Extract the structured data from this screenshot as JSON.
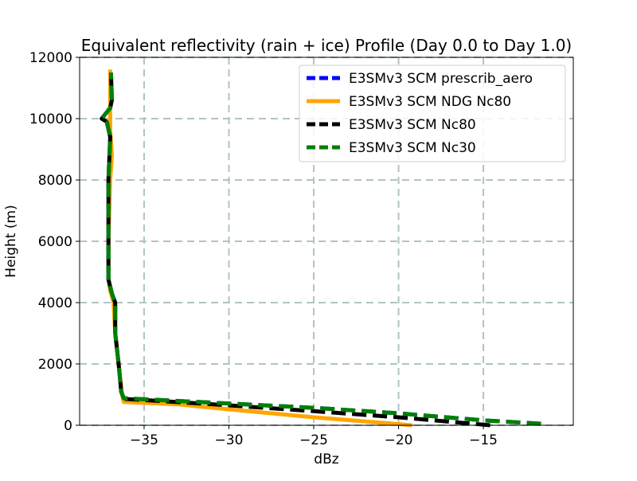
{
  "chart_data": {
    "type": "line",
    "title": "Equivalent reflectivity (rain + ice) Profile (Day 0.0 to Day 1.0)",
    "xlabel": "dBz",
    "ylabel": "Height (m)",
    "xlim": [
      -38.8,
      -9.7
    ],
    "ylim": [
      0,
      12000
    ],
    "x_ticks": [
      -35,
      -30,
      -25,
      -20,
      -15
    ],
    "y_ticks": [
      0,
      2000,
      4000,
      6000,
      8000,
      10000,
      12000
    ],
    "grid": true,
    "legend_position": "top-right",
    "series": [
      {
        "name": "E3SMv3 SCM prescrib_aero",
        "color": "#0000ff",
        "style": "dashed",
        "points": [
          [
            -11.6,
            50
          ],
          [
            -15,
            160
          ],
          [
            -20,
            390
          ],
          [
            -25,
            570
          ],
          [
            -30,
            710
          ],
          [
            -34,
            820
          ],
          [
            -36.2,
            880
          ],
          [
            -36.35,
            1100
          ],
          [
            -36.5,
            2000
          ],
          [
            -36.7,
            3000
          ],
          [
            -36.7,
            4000
          ],
          [
            -36.9,
            4300
          ],
          [
            -37.1,
            4750
          ],
          [
            -37.1,
            6000
          ],
          [
            -37.1,
            8000
          ],
          [
            -37.0,
            9400
          ],
          [
            -37.2,
            9900
          ],
          [
            -37.5,
            10000
          ],
          [
            -37.0,
            10350
          ],
          [
            -36.9,
            10600
          ],
          [
            -36.95,
            11500
          ]
        ]
      },
      {
        "name": "E3SMv3 SCM NDG Nc80",
        "color": "#ffa500",
        "style": "solid",
        "points": [
          [
            -19.2,
            0
          ],
          [
            -25,
            260
          ],
          [
            -30,
            520
          ],
          [
            -33,
            680
          ],
          [
            -36.2,
            760
          ],
          [
            -36.3,
            1000
          ],
          [
            -36.5,
            2000
          ],
          [
            -36.7,
            3000
          ],
          [
            -36.8,
            4000
          ],
          [
            -37.0,
            4400
          ],
          [
            -37.1,
            4800
          ],
          [
            -37.1,
            6000
          ],
          [
            -37.0,
            8000
          ],
          [
            -36.9,
            8800
          ],
          [
            -37.0,
            9600
          ],
          [
            -37.0,
            10400
          ],
          [
            -37.0,
            11600
          ]
        ]
      },
      {
        "name": "E3SMv3 SCM Nc80",
        "color": "#000000",
        "style": "dashed",
        "points": [
          [
            -14.6,
            0
          ],
          [
            -20,
            260
          ],
          [
            -25,
            460
          ],
          [
            -30,
            650
          ],
          [
            -34,
            790
          ],
          [
            -36.2,
            860
          ],
          [
            -36.35,
            1100
          ],
          [
            -36.5,
            2000
          ],
          [
            -36.7,
            3000
          ],
          [
            -36.7,
            4000
          ],
          [
            -36.9,
            4300
          ],
          [
            -37.1,
            4750
          ],
          [
            -37.1,
            6000
          ],
          [
            -37.1,
            8000
          ],
          [
            -37.0,
            9400
          ],
          [
            -37.2,
            9900
          ],
          [
            -37.5,
            10000
          ],
          [
            -37.0,
            10350
          ],
          [
            -36.9,
            10600
          ],
          [
            -36.95,
            11500
          ]
        ]
      },
      {
        "name": "E3SMv3 SCM Nc30",
        "color": "#008000",
        "style": "dashed",
        "points": [
          [
            -11.6,
            50
          ],
          [
            -15,
            160
          ],
          [
            -20,
            390
          ],
          [
            -25,
            570
          ],
          [
            -30,
            710
          ],
          [
            -34,
            820
          ],
          [
            -36.2,
            880
          ],
          [
            -36.35,
            1100
          ],
          [
            -36.5,
            2000
          ],
          [
            -36.7,
            3000
          ],
          [
            -36.7,
            4000
          ],
          [
            -36.9,
            4300
          ],
          [
            -37.1,
            4750
          ],
          [
            -37.1,
            6000
          ],
          [
            -37.1,
            8000
          ],
          [
            -37.0,
            9400
          ],
          [
            -37.2,
            9900
          ],
          [
            -37.5,
            10000
          ],
          [
            -37.0,
            10350
          ],
          [
            -36.9,
            10600
          ],
          [
            -36.95,
            11500
          ]
        ]
      }
    ]
  }
}
